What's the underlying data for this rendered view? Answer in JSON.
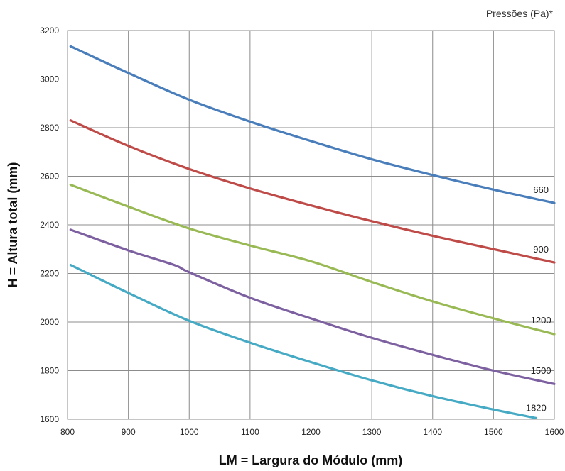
{
  "chart_data": {
    "type": "line",
    "title": "",
    "legend_title": "Pressões (Pa)*",
    "xlabel": "LM = Largura do Módulo (mm)",
    "ylabel": "H = Altura total (mm)",
    "xlim": [
      800,
      1600
    ],
    "ylim": [
      1600,
      3200
    ],
    "xticks": [
      800,
      900,
      1000,
      1100,
      1200,
      1300,
      1400,
      1500,
      1600
    ],
    "yticks": [
      1600,
      1800,
      2000,
      2200,
      2400,
      2600,
      2800,
      3000,
      3200
    ],
    "grid": true,
    "series": [
      {
        "name": "660",
        "color": "#4a7ebb",
        "x": [
          805,
          900,
          1000,
          1100,
          1200,
          1300,
          1400,
          1500,
          1600
        ],
        "y": [
          3135,
          3025,
          2915,
          2825,
          2745,
          2670,
          2605,
          2545,
          2490
        ]
      },
      {
        "name": "900",
        "color": "#be4b48",
        "x": [
          805,
          900,
          1000,
          1100,
          1200,
          1300,
          1400,
          1500,
          1600
        ],
        "y": [
          2830,
          2725,
          2630,
          2550,
          2480,
          2415,
          2355,
          2300,
          2245
        ]
      },
      {
        "name": "1200",
        "color": "#98b954",
        "x": [
          805,
          900,
          1000,
          1100,
          1200,
          1300,
          1400,
          1500,
          1600
        ],
        "y": [
          2565,
          2475,
          2385,
          2315,
          2250,
          2165,
          2085,
          2015,
          1950
        ]
      },
      {
        "name": "1500",
        "color": "#7d60a0",
        "x": [
          805,
          900,
          975,
          1000,
          1100,
          1200,
          1300,
          1400,
          1500,
          1600
        ],
        "y": [
          2380,
          2295,
          2235,
          2205,
          2100,
          2015,
          1935,
          1865,
          1800,
          1745
        ]
      },
      {
        "name": "1820",
        "color": "#46aac5",
        "x": [
          805,
          900,
          1000,
          1100,
          1200,
          1300,
          1400,
          1500,
          1570
        ],
        "y": [
          2235,
          2120,
          2005,
          1915,
          1835,
          1760,
          1695,
          1640,
          1605
        ]
      }
    ]
  }
}
